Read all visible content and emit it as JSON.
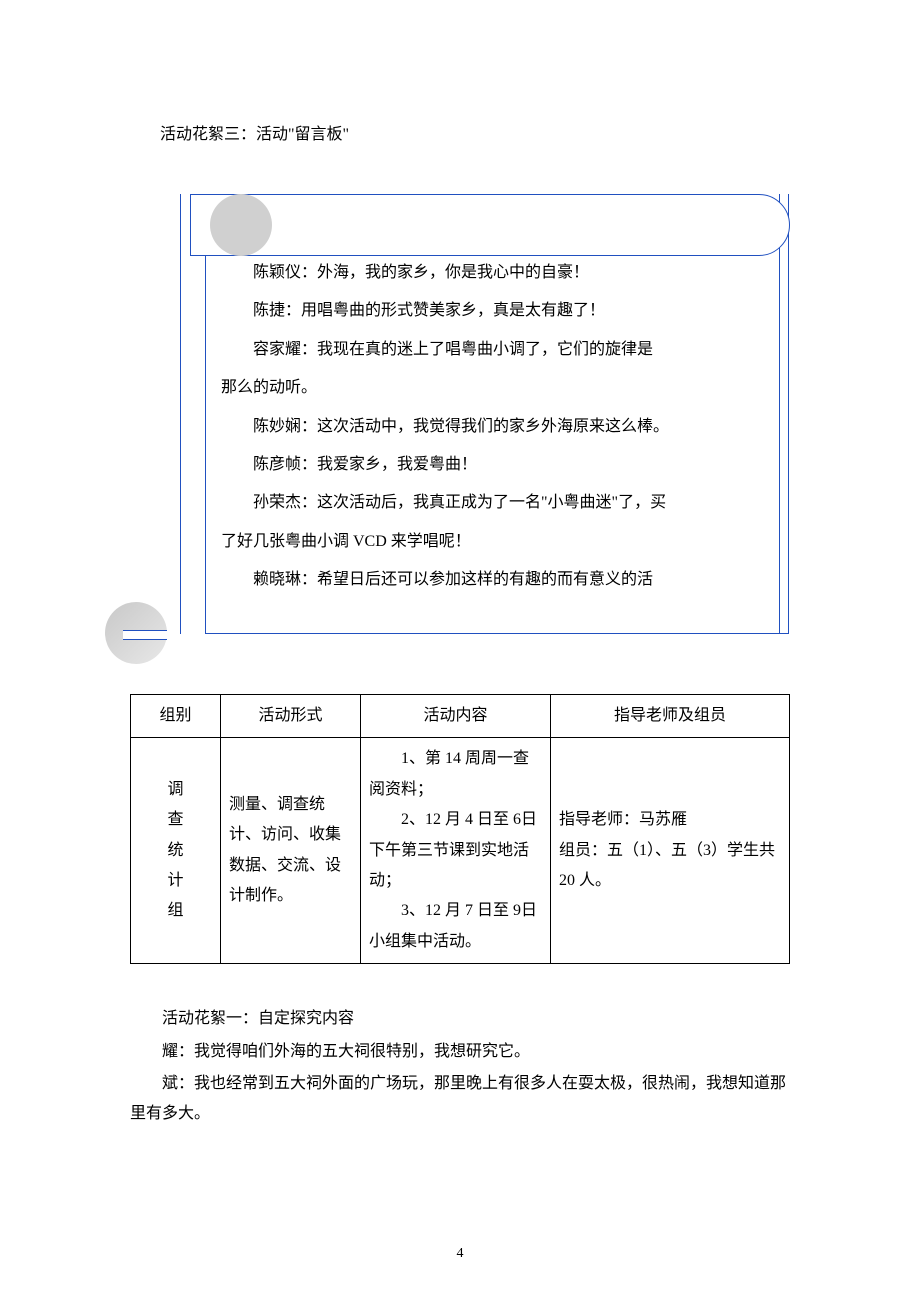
{
  "title3": "活动花絮三：活动\"留言板\"",
  "messages": {
    "m1": "陈颖仪：外海，我的家乡，你是我心中的自豪！",
    "m2": "陈捷：用唱粤曲的形式赞美家乡，真是太有趣了！",
    "m3a": "容家耀：我现在真的迷上了唱粤曲小调了，它们的旋律是",
    "m3b": "那么的动听。",
    "m4": "陈妙娴：这次活动中，我觉得我们的家乡外海原来这么棒。",
    "m5": "陈彦帧：我爱家乡，我爱粤曲！",
    "m6a": "孙荣杰：这次活动后，我真正成为了一名\"小粤曲迷\"了，买",
    "m6b": "了好几张粤曲小调 VCD 来学唱呢！",
    "m7": "赖晓琳：希望日后还可以参加这样的有趣的而有意义的活"
  },
  "table": {
    "headers": {
      "group": "组别",
      "form": "活动形式",
      "content": "活动内容",
      "teacher": "指导老师及组员"
    },
    "row": {
      "group_chars": [
        "调",
        "查",
        "统",
        "计",
        "组"
      ],
      "form": "测量、调查统计、访问、收集数据、交流、设计制作。",
      "content": "　　1、第 14 周周一查阅资料；\n　　2、12 月 4 日至 6日下午第三节课到实地活动；\n　　3、12 月 7 日至 9日小组集中活动。",
      "teacher": "指导老师：马苏雁\n组员：五（1）、五（3）学生共 20 人。"
    }
  },
  "title1": "活动花絮一：自定探究内容",
  "dialog": {
    "d1": "耀：我觉得咱们外海的五大祠很特别，我想研究它。",
    "d2": "斌：我也经常到五大祠外面的广场玩，那里晚上有很多人在耍太极，很热闹，我想知道那里有多大。"
  },
  "page_number": "4"
}
